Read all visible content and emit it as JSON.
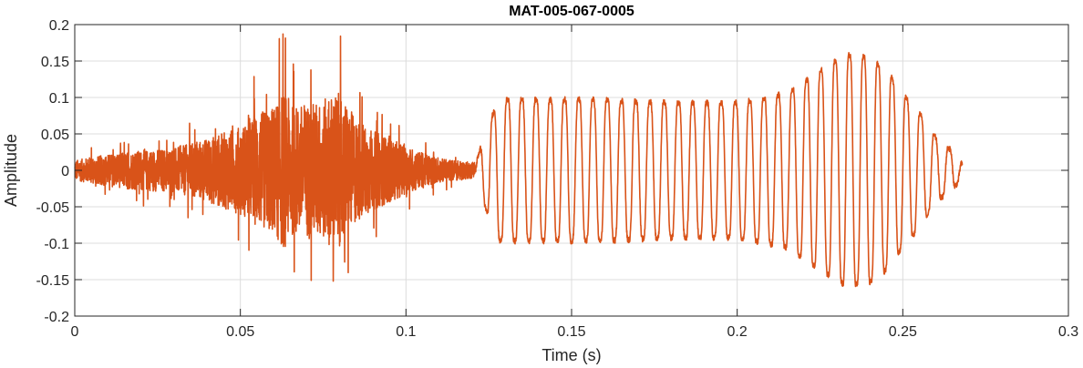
{
  "chart_data": {
    "type": "line",
    "title": "MAT-005-067-0005",
    "xlabel": "Time (s)",
    "ylabel": "Amplitude",
    "xlim": [
      0,
      0.3
    ],
    "ylim": [
      -0.2,
      0.2
    ],
    "x_ticks": [
      0,
      0.05,
      0.1,
      0.15,
      0.2,
      0.25,
      0.3
    ],
    "x_tick_labels": [
      "0",
      "0.05",
      "0.1",
      "0.15",
      "0.2",
      "0.25",
      "0.3"
    ],
    "y_ticks": [
      -0.2,
      -0.15,
      -0.1,
      -0.05,
      0,
      0.05,
      0.1,
      0.15,
      0.2
    ],
    "y_tick_labels": [
      "-0.2",
      "-0.15",
      "-0.1",
      "-0.05",
      "0",
      "0.05",
      "0.1",
      "0.15",
      "0.2"
    ],
    "grid": true,
    "line_color": "#D95319",
    "series": [
      {
        "segments": [
          {
            "kind": "noise",
            "t_start": 0.0,
            "t_end": 0.121,
            "envelope_t": [
              0.0,
              0.01,
              0.02,
              0.03,
              0.04,
              0.05,
              0.055,
              0.06,
              0.063,
              0.066,
              0.07,
              0.075,
              0.079,
              0.085,
              0.09,
              0.1,
              0.11,
              0.12,
              0.121
            ],
            "envelope_amp": [
              0.025,
              0.04,
              0.05,
              0.055,
              0.08,
              0.11,
              0.14,
              0.16,
              0.2,
              0.16,
              0.17,
              0.175,
              0.2,
              0.13,
              0.1,
              0.06,
              0.03,
              0.02,
              0.01
            ]
          },
          {
            "kind": "periodic",
            "t_start": 0.121,
            "t_end": 0.268,
            "period": 0.0043,
            "envelope_t": [
              0.121,
              0.124,
              0.128,
              0.14,
              0.16,
              0.18,
              0.2,
              0.215,
              0.225,
              0.233,
              0.24,
              0.245,
              0.25,
              0.255,
              0.26,
              0.265,
              0.268
            ],
            "envelope_amp": [
              0.01,
              0.06,
              0.11,
              0.11,
              0.11,
              0.105,
              0.105,
              0.12,
              0.155,
              0.18,
              0.175,
              0.155,
              0.12,
              0.09,
              0.05,
              0.03,
              0.01
            ]
          }
        ]
      }
    ]
  }
}
